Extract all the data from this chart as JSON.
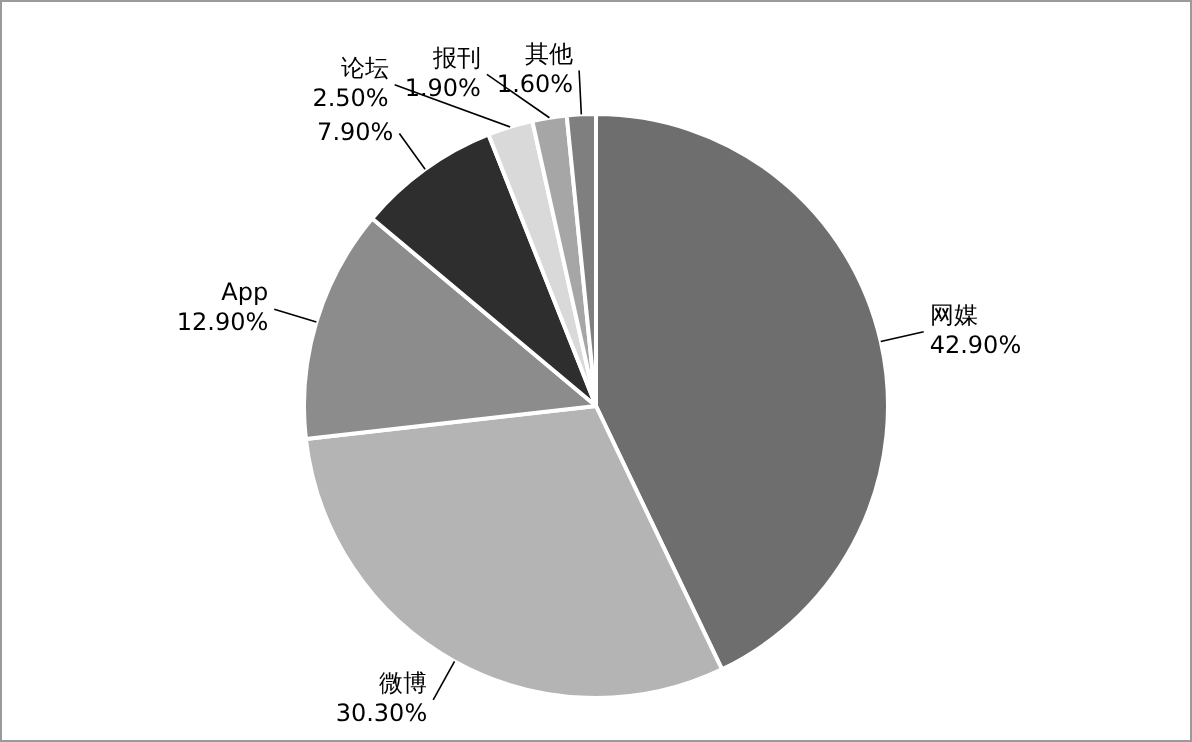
{
  "chart_data": {
    "type": "pie",
    "categories": [
      "网媒",
      "微博",
      "App",
      null,
      "论坛",
      "报刊",
      "其他"
    ],
    "values": [
      42.9,
      30.3,
      12.9,
      7.9,
      2.5,
      1.9,
      1.6
    ],
    "colors": [
      "#6e6e6e",
      "#b4b4b4",
      "#8c8c8c",
      "#2e2e2e",
      "#d9d9d9",
      "#a6a6a6",
      "#7f7f7f"
    ],
    "value_labels": [
      "42.90%",
      "30.30%",
      "12.90%",
      "7.90%",
      "2.50%",
      "1.90%",
      "1.60%"
    ]
  }
}
